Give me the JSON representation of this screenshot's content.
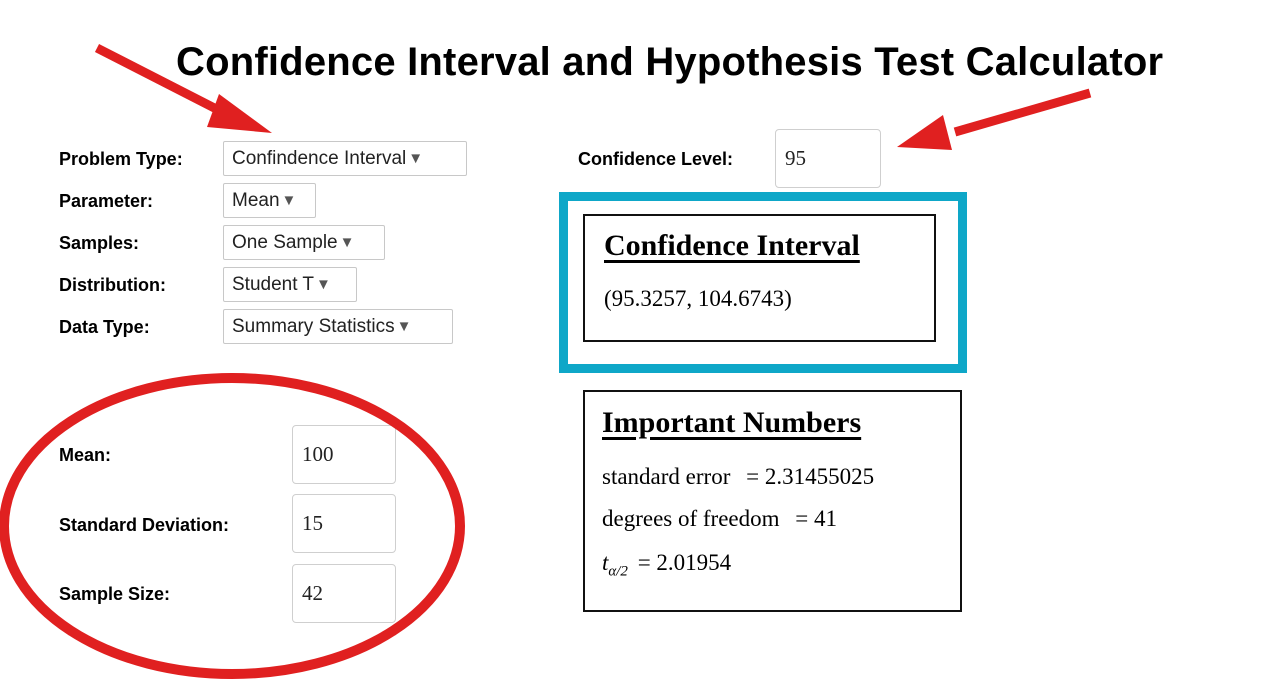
{
  "page": {
    "title": "Confidence Interval and Hypothesis Test Calculator"
  },
  "form": {
    "problem_type": {
      "label": "Problem Type:",
      "value": "Confindence Interval"
    },
    "parameter": {
      "label": "Parameter:",
      "value": "Mean"
    },
    "samples": {
      "label": "Samples:",
      "value": "One Sample"
    },
    "distribution": {
      "label": "Distribution:",
      "value": "Student T"
    },
    "data_type": {
      "label": "Data Type:",
      "value": "Summary Statistics"
    },
    "confidence_level": {
      "label": "Confidence Level:",
      "value": "95"
    }
  },
  "inputs": {
    "mean": {
      "label": "Mean:",
      "value": "100"
    },
    "sd": {
      "label": "Standard Deviation:",
      "value": "15"
    },
    "n": {
      "label": "Sample Size:",
      "value": "42"
    }
  },
  "results": {
    "ci": {
      "heading": "Confidence Interval",
      "value": "(95.3257,  104.6743)"
    },
    "numbers": {
      "heading": "Important Numbers",
      "se_label": "standard error",
      "se_value": "= 2.31455025",
      "df_label": "degrees of freedom",
      "df_value": "= 41",
      "t_symbol": "t",
      "t_subscript": "α/2",
      "t_value": "= 2.01954"
    }
  },
  "annotations": {
    "arrow_color": "#e02020",
    "highlight_color": "#0ea7c8",
    "circle_color": "#e02020"
  },
  "icons": {
    "dropdown": "caret-down-icon"
  }
}
